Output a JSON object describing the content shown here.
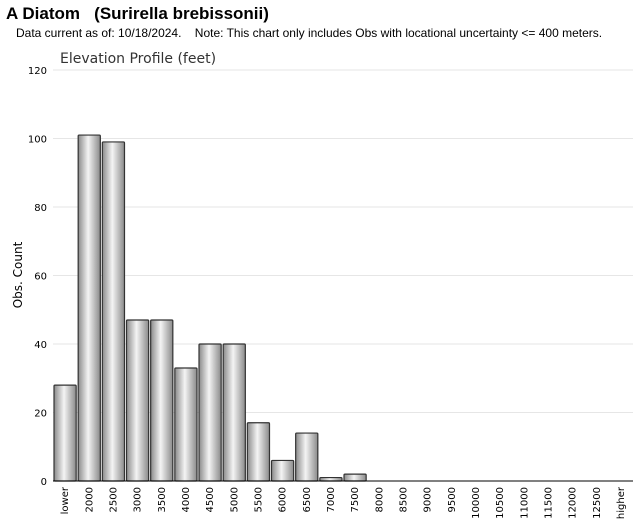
{
  "header": {
    "title": "A Diatom   (Surirella brebissonii)",
    "subtitle": "Data current as of: 10/18/2024.    Note: This chart only includes Obs with locational uncertainty <= 400 meters."
  },
  "chart_data": {
    "type": "bar",
    "title": "Elevation Profile (feet)",
    "xlabel": "",
    "ylabel": "Obs. Count",
    "ylim": [
      0,
      120
    ],
    "yticks": [
      0,
      20,
      40,
      60,
      80,
      100,
      120
    ],
    "grid": true,
    "categories": [
      "lower",
      "2000",
      "2500",
      "3000",
      "3500",
      "4000",
      "4500",
      "5000",
      "5500",
      "6000",
      "6500",
      "7000",
      "7500",
      "8000",
      "8500",
      "9000",
      "9500",
      "10000",
      "10500",
      "11000",
      "11500",
      "12000",
      "12500",
      "higher"
    ],
    "values": [
      28,
      101,
      99,
      47,
      47,
      33,
      40,
      40,
      17,
      6,
      14,
      1,
      2,
      0,
      0,
      0,
      0,
      0,
      0,
      0,
      0,
      0,
      0,
      0
    ],
    "colors": {
      "bar_light": "#f4f4f4",
      "bar_dark": "#8a8a8a",
      "bar_stroke": "#333333",
      "grid": "#e6e6e6",
      "axis": "#000000"
    }
  }
}
